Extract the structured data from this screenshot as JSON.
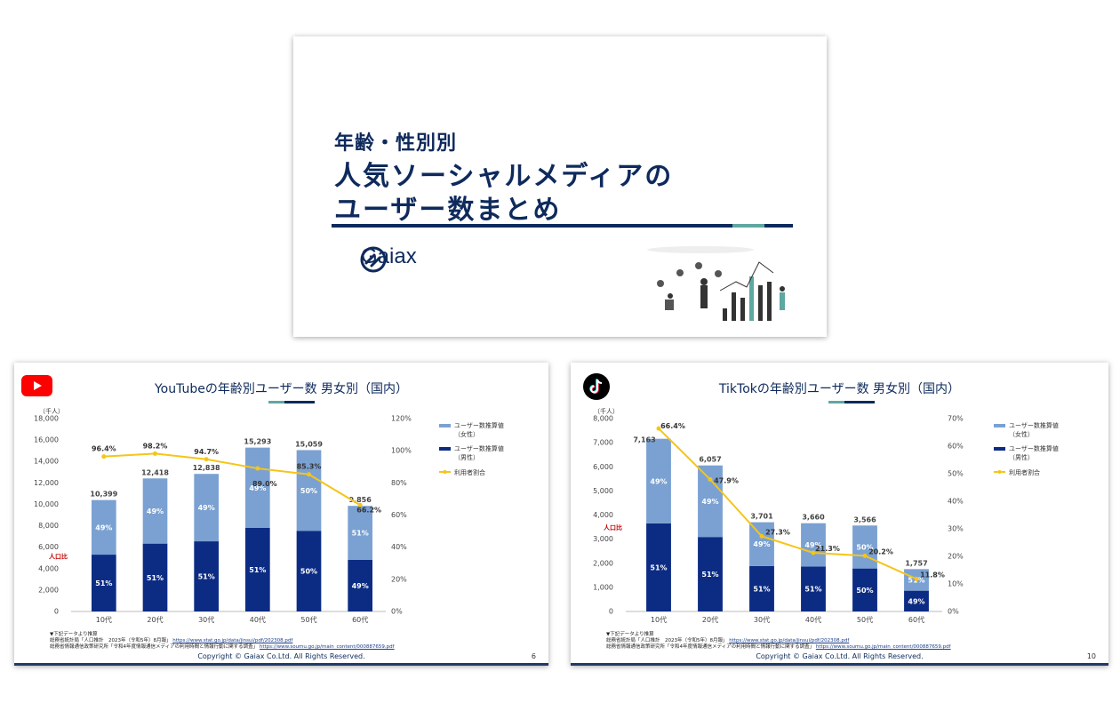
{
  "title_slide": {
    "line1": "年齢・性別別",
    "line2": "人気ソーシャルメディアの",
    "line3": "ユーザー数まとめ",
    "logo_text": "Gaiax"
  },
  "youtube_slide": {
    "title": "YouTubeの年齢別ユーザー数 男女別（国内）",
    "unit": "（千人）",
    "population_label": "人口比",
    "legend": [
      "ユーザー数推算値\n（女性）",
      "ユーザー数推算値\n（男性）",
      "利用者割合"
    ],
    "note_heading": "▼下記データより推算",
    "note_line1_text": "総務省統計局「人口推計　2023年（令和5年）8月報」",
    "note_line1_url": "https://www.stat.go.jp/data/jinsui/pdf/202308.pdf",
    "note_line2_text": "総務省情報通信政策研究所「令和4年度情報通信メディアの利用時間と情報行動に関する調査」",
    "note_line2_url": "https://www.soumu.go.jp/main_content/000887659.pdf",
    "copyright": "Copyright © Gaiax Co.Ltd. All Rights Reserved.",
    "page": "6"
  },
  "tiktok_slide": {
    "title": "TikTokの年齢別ユーザー数 男女別（国内）",
    "unit": "（千人）",
    "population_label": "人口比",
    "legend": [
      "ユーザー数推算値\n（女性）",
      "ユーザー数推算値\n（男性）",
      "利用者割合"
    ],
    "note_heading": "▼下記データより推算",
    "note_line1_text": "総務省統計局「人口推計　2023年（令和5年）8月報」",
    "note_line1_url": "https://www.stat.go.jp/data/jinsui/pdf/202308.pdf",
    "note_line2_text": "総務省情報通信政策研究所「令和4年度情報通信メディアの利用時間と情報行動に関する調査」",
    "note_line2_url": "https://www.soumu.go.jp/main_content/000887659.pdf",
    "copyright": "Copyright © Gaiax Co.Ltd. All Rights Reserved.",
    "page": "10"
  },
  "colors": {
    "navy": "#0e2a5c",
    "male_bar": "#0c2c84",
    "female_bar": "#7aa1d2",
    "line": "#f5c518",
    "accent": "#5fa8a0"
  },
  "chart_data": [
    {
      "type": "bar",
      "stacked": true,
      "title": "YouTubeの年齢別ユーザー数 男女別（国内）",
      "categories": [
        "10代",
        "20代",
        "30代",
        "40代",
        "50代",
        "60代"
      ],
      "totals": [
        10399,
        12418,
        12838,
        15293,
        15059,
        9856
      ],
      "total_labels": [
        "10,399",
        "12,418",
        "12,838",
        "15,293",
        "15,059",
        "9,856"
      ],
      "series": [
        {
          "name": "ユーザー数推算値（男性）",
          "share_labels": [
            "51%",
            "51%",
            "51%",
            "51%",
            "50%",
            "49%"
          ],
          "share": [
            0.51,
            0.51,
            0.51,
            0.51,
            0.5,
            0.49
          ]
        },
        {
          "name": "ユーザー数推算値（女性）",
          "share_labels": [
            "49%",
            "49%",
            "49%",
            "49%",
            "50%",
            "51%"
          ],
          "share": [
            0.49,
            0.49,
            0.49,
            0.49,
            0.5,
            0.51
          ]
        }
      ],
      "line": {
        "name": "利用者割合",
        "values": [
          96.4,
          98.2,
          94.7,
          89.0,
          85.3,
          66.2
        ],
        "labels": [
          "96.4%",
          "98.2%",
          "94.7%",
          "89.0%",
          "85.3%",
          "66.2%"
        ]
      },
      "ylim": [
        0,
        18000
      ],
      "yticks": [
        0,
        2000,
        4000,
        6000,
        8000,
        10000,
        12000,
        14000,
        16000,
        18000
      ],
      "ytick_labels": [
        "0",
        "2,000",
        "4,000",
        "6,000",
        "8,000",
        "10,000",
        "12,000",
        "14,000",
        "16,000",
        "18,000"
      ],
      "y2lim": [
        0,
        120
      ],
      "y2ticks": [
        0,
        20,
        40,
        60,
        80,
        100,
        120
      ],
      "y2tick_labels": [
        "0%",
        "20%",
        "40%",
        "60%",
        "80%",
        "100%",
        "120%"
      ],
      "legend_position": "right",
      "grid": false
    },
    {
      "type": "bar",
      "stacked": true,
      "title": "TikTokの年齢別ユーザー数 男女別（国内）",
      "categories": [
        "10代",
        "20代",
        "30代",
        "40代",
        "50代",
        "60代"
      ],
      "totals": [
        7163,
        6057,
        3701,
        3660,
        3566,
        1757
      ],
      "total_labels": [
        "7,163",
        "6,057",
        "3,701",
        "3,660",
        "3,566",
        "1,757"
      ],
      "series": [
        {
          "name": "ユーザー数推算値（男性）",
          "share_labels": [
            "51%",
            "51%",
            "51%",
            "51%",
            "50%",
            "49%"
          ],
          "share": [
            0.51,
            0.51,
            0.51,
            0.51,
            0.5,
            0.49
          ]
        },
        {
          "name": "ユーザー数推算値（女性）",
          "share_labels": [
            "49%",
            "49%",
            "49%",
            "49%",
            "50%",
            "51%"
          ],
          "share": [
            0.49,
            0.49,
            0.49,
            0.49,
            0.5,
            0.51
          ]
        }
      ],
      "line": {
        "name": "利用者割合",
        "values": [
          66.4,
          47.9,
          27.3,
          21.3,
          20.2,
          11.8
        ],
        "labels": [
          "66.4%",
          "47.9%",
          "27.3%",
          "21.3%",
          "20.2%",
          "11.8%"
        ]
      },
      "ylim": [
        0,
        8000
      ],
      "yticks": [
        0,
        1000,
        2000,
        3000,
        4000,
        5000,
        6000,
        7000,
        8000
      ],
      "ytick_labels": [
        "0",
        "1,000",
        "2,000",
        "3,000",
        "4,000",
        "5,000",
        "6,000",
        "7,000",
        "8,000"
      ],
      "y2lim": [
        0,
        70
      ],
      "y2ticks": [
        0,
        10,
        20,
        30,
        40,
        50,
        60,
        70
      ],
      "y2tick_labels": [
        "0%",
        "10%",
        "20%",
        "30%",
        "40%",
        "50%",
        "60%",
        "70%"
      ],
      "legend_position": "right",
      "grid": false
    }
  ]
}
